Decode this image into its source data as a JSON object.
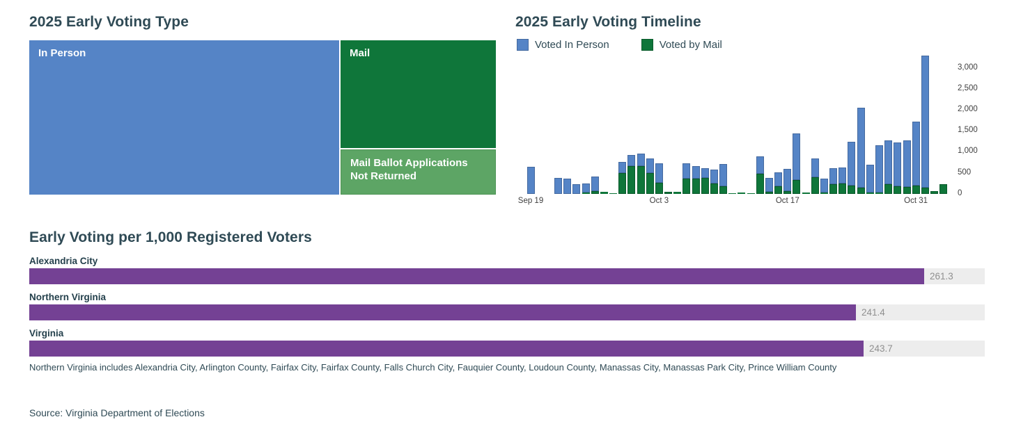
{
  "colors": {
    "in_person_blue": "#5584c6",
    "in_person_blue_border": "#44699f",
    "mail_green": "#0f763a",
    "mail_green_border": "#0a5a2b",
    "mail_not_returned_green": "#5da565",
    "purple": "#744194",
    "track_gray": "#ededed",
    "value_gray": "#8f8f8f",
    "heading_text": "#2f4a55",
    "axis_text": "#3e3e3e"
  },
  "treemap_section": {
    "title": "2025 Early Voting Type",
    "items": [
      {
        "label": "In Person"
      },
      {
        "label": "Mail"
      },
      {
        "label": "Mail Ballot Applications Not Returned"
      }
    ]
  },
  "timeline_section": {
    "title": "2025 Early Voting Timeline",
    "legend": [
      {
        "label": "Voted In Person"
      },
      {
        "label": "Voted by Mail"
      }
    ]
  },
  "per1000_section": {
    "title": "Early Voting per 1,000 Registered Voters"
  },
  "note": "Northern Virginia includes Alexandria City, Arlington County, Fairfax City, Fairfax County, Falls Church City, Fauquier County, Loudoun County, Manassas City, Manassas Park City, Prince William County",
  "source": "Source: Virginia Department of Elections",
  "chart_data": [
    {
      "type": "treemap",
      "title": "2025 Early Voting Type",
      "items": [
        {
          "label": "In Person",
          "share": 0.668,
          "color": "#5584c6"
        },
        {
          "label": "Mail",
          "share": 0.234,
          "color": "#0f763a"
        },
        {
          "label": "Mail Ballot Applications Not Returned",
          "share": 0.098,
          "color": "#5da565"
        }
      ]
    },
    {
      "type": "bar",
      "stacked": true,
      "title": "2025 Early Voting Timeline",
      "legend_position": "top",
      "axis_side": "right",
      "grid": false,
      "ylim": [
        0,
        3300
      ],
      "y_tick_labels": [
        "3,000",
        "2,500",
        "2,000",
        "1,500",
        "1,000",
        "500",
        "0"
      ],
      "x_ticks": [
        {
          "label": "Sep 19",
          "index": 0
        },
        {
          "label": "Oct 3",
          "index": 14
        },
        {
          "label": "Oct 17",
          "index": 28
        },
        {
          "label": "Oct 31",
          "index": 42
        }
      ],
      "x": [
        "Sep 19",
        "Sep 20",
        "Sep 21",
        "Sep 22",
        "Sep 23",
        "Sep 24",
        "Sep 25",
        "Sep 26",
        "Sep 27",
        "Sep 28",
        "Sep 29",
        "Sep 30",
        "Oct 1",
        "Oct 2",
        "Oct 3",
        "Oct 4",
        "Oct 5",
        "Oct 6",
        "Oct 7",
        "Oct 8",
        "Oct 9",
        "Oct 10",
        "Oct 11",
        "Oct 12",
        "Oct 13",
        "Oct 14",
        "Oct 15",
        "Oct 16",
        "Oct 17",
        "Oct 18",
        "Oct 19",
        "Oct 20",
        "Oct 21",
        "Oct 22",
        "Oct 23",
        "Oct 24",
        "Oct 25",
        "Oct 26",
        "Oct 27",
        "Oct 28",
        "Oct 29",
        "Oct 30",
        "Oct 31",
        "Nov 1",
        "Nov 2",
        "Nov 3"
      ],
      "series": [
        {
          "name": "Voted In Person",
          "color": "#5584c6",
          "values": [
            650,
            0,
            0,
            380,
            370,
            240,
            210,
            335,
            0,
            0,
            255,
            260,
            305,
            335,
            455,
            0,
            0,
            355,
            300,
            235,
            320,
            520,
            0,
            0,
            0,
            430,
            335,
            335,
            525,
            1120,
            0,
            450,
            325,
            385,
            380,
            1035,
            1910,
            655,
            1125,
            1035,
            1035,
            1110,
            1525,
            3150,
            0,
            0
          ]
        },
        {
          "name": "Voted by Mail",
          "color": "#0f763a",
          "values": [
            0,
            0,
            0,
            0,
            0,
            0,
            35,
            75,
            45,
            20,
            505,
            670,
            660,
            505,
            270,
            55,
            45,
            370,
            370,
            380,
            255,
            185,
            20,
            35,
            20,
            475,
            50,
            180,
            65,
            330,
            30,
            400,
            40,
            225,
            245,
            205,
            150,
            40,
            30,
            235,
            190,
            170,
            205,
            150,
            60,
            240
          ]
        }
      ]
    },
    {
      "type": "bar",
      "orientation": "horizontal",
      "title": "Early Voting per 1,000 Registered Voters",
      "categories": [
        "Alexandria City",
        "Northern Virginia",
        "Virginia"
      ],
      "values": [
        261.3,
        241.4,
        243.7
      ],
      "value_labels": [
        "261.3",
        "241.4",
        "243.7"
      ],
      "xlim": [
        0,
        279
      ],
      "bar_color": "#744194",
      "track_color": "#ededed",
      "grid": false
    }
  ]
}
